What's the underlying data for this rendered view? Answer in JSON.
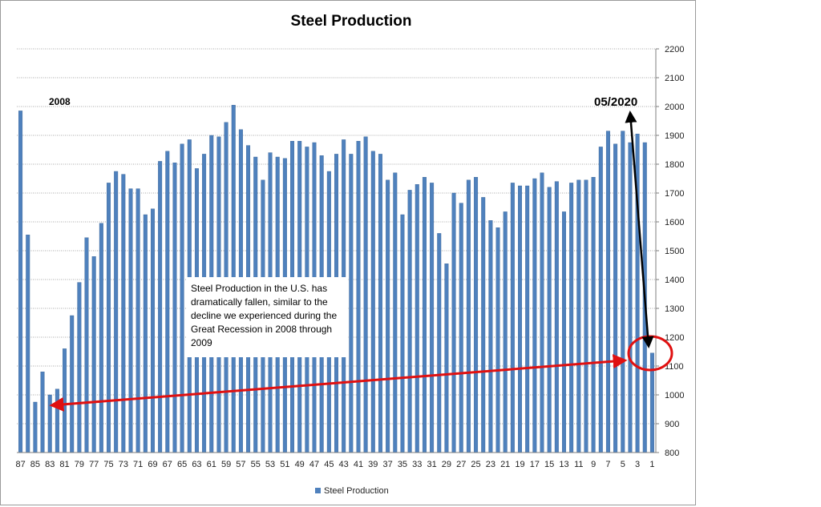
{
  "chart_data": {
    "type": "bar",
    "title": "Steel Production",
    "xlabel": "",
    "ylabel": "",
    "ylim": [
      800,
      2200
    ],
    "yticks": [
      800,
      900,
      1000,
      1100,
      1200,
      1300,
      1400,
      1500,
      1600,
      1700,
      1800,
      1900,
      2000,
      2100,
      2200
    ],
    "y_axis_side": "right",
    "grid": true,
    "legend": "bottom-center",
    "series": [
      {
        "name": "Steel Production",
        "color": "#4F81BD",
        "values": [
          1985,
          1555,
          975,
          1080,
          1000,
          1020,
          1160,
          1275,
          1390,
          1545,
          1480,
          1595,
          1735,
          1775,
          1765,
          1715,
          1715,
          1625,
          1645,
          1810,
          1845,
          1805,
          1870,
          1885,
          1785,
          1835,
          1900,
          1895,
          1945,
          2005,
          1920,
          1865,
          1825,
          1745,
          1840,
          1825,
          1820,
          1880,
          1880,
          1860,
          1875,
          1830,
          1775,
          1835,
          1885,
          1835,
          1880,
          1895,
          1845,
          1835,
          1745,
          1770,
          1625,
          1710,
          1730,
          1755,
          1735,
          1560,
          1455,
          1700,
          1665,
          1745,
          1755,
          1685,
          1605,
          1580,
          1635,
          1735,
          1725,
          1725,
          1750,
          1770,
          1720,
          1740,
          1635,
          1735,
          1745,
          1745,
          1755,
          1860,
          1915,
          1870,
          1915,
          1875,
          1905,
          1875,
          1145
        ]
      }
    ],
    "x_tick_labels": [
      "87",
      "85",
      "83",
      "81",
      "79",
      "77",
      "75",
      "73",
      "71",
      "69",
      "67",
      "65",
      "63",
      "61",
      "59",
      "57",
      "55",
      "53",
      "51",
      "49",
      "47",
      "45",
      "43",
      "41",
      "39",
      "37",
      "35",
      "33",
      "31",
      "29",
      "27",
      "25",
      "23",
      "21",
      "19",
      "17",
      "15",
      "13",
      "11",
      "9",
      "7",
      "5",
      "3",
      "1"
    ],
    "annotations": {
      "year_label": "2008",
      "date_label": "05/2020",
      "note": "Steel Production in the U.S. has dramatically fallen, similar to the decline we experienced during the Great Recession in 2008 through 2009"
    }
  },
  "colors": {
    "bar": "#4F81BD",
    "bar_edge": "#3A6596",
    "arrow_red": "#E01010",
    "arrow_black": "#000000",
    "grid": "#8c8c8c"
  }
}
